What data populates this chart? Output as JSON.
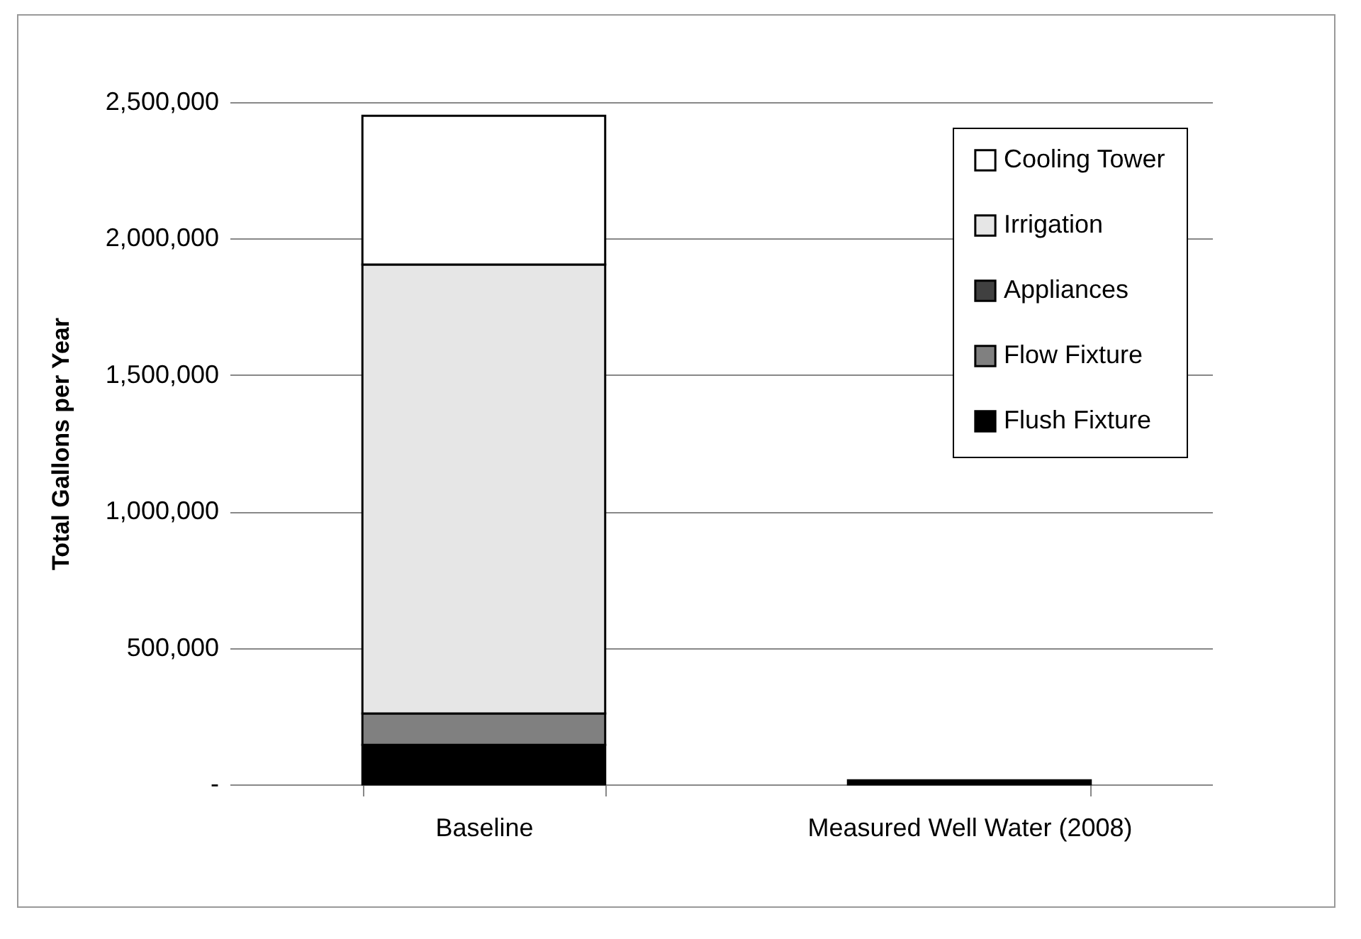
{
  "chart_data": {
    "type": "bar",
    "ylabel": "Total Gallons  per Year",
    "categories": [
      "Baseline",
      "Measured Well Water (2008)"
    ],
    "stacked": true,
    "series": [
      {
        "name": "Flush Fixture",
        "color": "#000000",
        "values": [
          145000,
          15000
        ]
      },
      {
        "name": "Flow Fixture",
        "color": "#808080",
        "values": [
          115000,
          null
        ]
      },
      {
        "name": "Appliances",
        "color": "#404040",
        "values": [
          null,
          null
        ]
      },
      {
        "name": "Irrigation",
        "color": "#e6e6e6",
        "values": [
          1645000,
          null
        ]
      },
      {
        "name": "Cooling Tower",
        "color": "#ffffff",
        "values": [
          545000,
          null
        ]
      }
    ],
    "ylim": [
      0,
      2500000
    ],
    "yticks": [
      {
        "value": 0,
        "label": "-"
      },
      {
        "value": 500000,
        "label": "500,000"
      },
      {
        "value": 1000000,
        "label": "1,000,000"
      },
      {
        "value": 1500000,
        "label": "1,500,000"
      },
      {
        "value": 2000000,
        "label": "2,000,000"
      },
      {
        "value": 2500000,
        "label": "2,500,000"
      }
    ],
    "grid": "y",
    "legend": "top right"
  }
}
